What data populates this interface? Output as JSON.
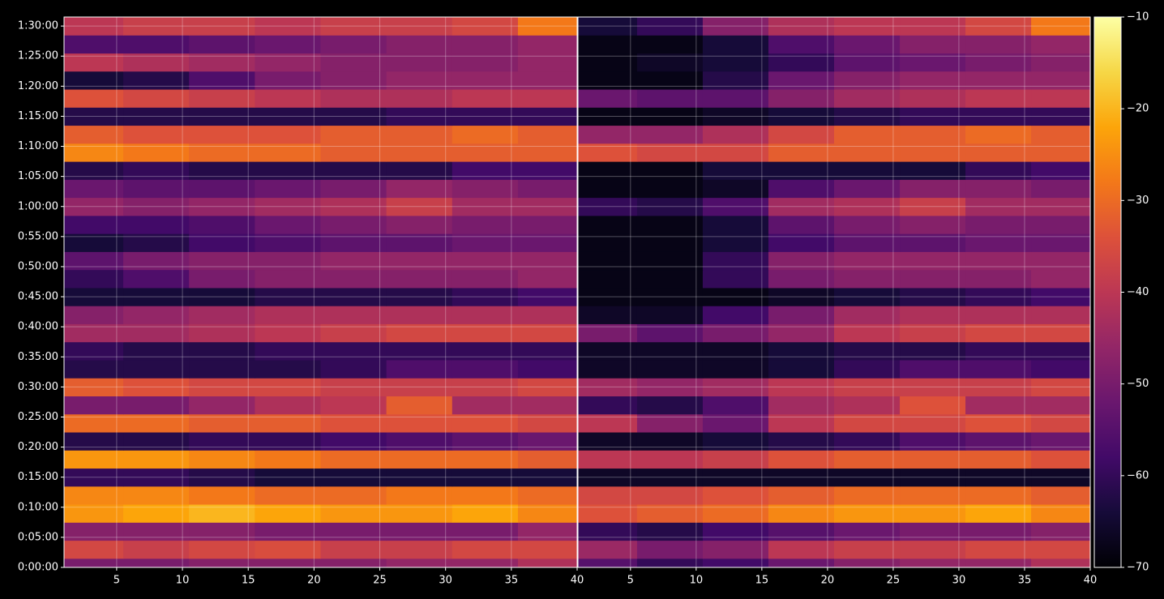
{
  "chart_data": [
    {
      "type": "heatmap",
      "colormap": "inferno",
      "grid": true,
      "x": [
        3,
        8,
        13,
        18,
        23,
        28,
        33,
        38
      ],
      "y": [
        0,
        180,
        360,
        540,
        720,
        900,
        1080,
        1260,
        1440,
        1620,
        1800,
        1980,
        2160,
        2340,
        2520,
        2700,
        2880,
        3060,
        3240,
        3420,
        3600,
        3780,
        3960,
        4140,
        4320,
        4500,
        4680,
        4860,
        5040,
        5220,
        5400
      ],
      "z": [
        [
          -50,
          -50,
          -48,
          -48,
          -48,
          -46,
          -46,
          -42
        ],
        [
          -36,
          -38,
          -36,
          -35,
          -38,
          -38,
          -36,
          -36
        ],
        [
          -48,
          -48,
          -48,
          -50,
          -50,
          -50,
          -50,
          -46
        ],
        [
          -24,
          -22,
          -20,
          -22,
          -24,
          -24,
          -22,
          -26
        ],
        [
          -26,
          -26,
          -28,
          -30,
          -30,
          -28,
          -28,
          -30
        ],
        [
          -60,
          -60,
          -62,
          -64,
          -64,
          -64,
          -64,
          -64
        ],
        [
          -24,
          -24,
          -26,
          -28,
          -30,
          -30,
          -30,
          -32
        ],
        [
          -62,
          -62,
          -60,
          -60,
          -58,
          -56,
          -54,
          -52
        ],
        [
          -30,
          -30,
          -32,
          -32,
          -34,
          -34,
          -34,
          -36
        ],
        [
          -50,
          -50,
          -46,
          -42,
          -40,
          -32,
          -44,
          -44
        ],
        [
          -32,
          -34,
          -36,
          -36,
          -38,
          -38,
          -38,
          -36
        ],
        [
          -62,
          -62,
          -62,
          -62,
          -60,
          -56,
          -56,
          -58
        ],
        [
          -60,
          -62,
          -62,
          -60,
          -60,
          -60,
          -60,
          -60
        ],
        [
          -44,
          -44,
          -42,
          -40,
          -38,
          -36,
          -36,
          -36
        ],
        [
          -48,
          -46,
          -44,
          -42,
          -42,
          -42,
          -42,
          -42
        ],
        [
          -64,
          -64,
          -64,
          -62,
          -62,
          -62,
          -60,
          -58
        ],
        [
          -60,
          -56,
          -50,
          -48,
          -48,
          -48,
          -48,
          -46
        ],
        [
          -54,
          -50,
          -48,
          -48,
          -46,
          -46,
          -46,
          -46
        ],
        [
          -64,
          -62,
          -58,
          -56,
          -54,
          -54,
          -52,
          -52
        ],
        [
          -58,
          -58,
          -56,
          -52,
          -50,
          -48,
          -50,
          -50
        ],
        [
          -46,
          -48,
          -46,
          -44,
          -42,
          -38,
          -44,
          -44
        ],
        [
          -52,
          -54,
          -54,
          -52,
          -50,
          -46,
          -48,
          -50
        ],
        [
          -62,
          -60,
          -62,
          -62,
          -62,
          -62,
          -58,
          -58
        ],
        [
          -26,
          -28,
          -30,
          -30,
          -32,
          -32,
          -32,
          -32
        ],
        [
          -32,
          -34,
          -34,
          -34,
          -32,
          -32,
          -30,
          -32
        ],
        [
          -62,
          -62,
          -62,
          -62,
          -62,
          -60,
          -60,
          -60
        ],
        [
          -34,
          -36,
          -38,
          -40,
          -42,
          -42,
          -40,
          -40
        ],
        [
          -64,
          -62,
          -56,
          -50,
          -48,
          -46,
          -46,
          -46
        ],
        [
          -40,
          -42,
          -44,
          -46,
          -48,
          -48,
          -48,
          -46
        ],
        [
          -56,
          -56,
          -54,
          -52,
          -50,
          -48,
          -48,
          -46
        ],
        [
          -40,
          -38,
          -38,
          -40,
          -38,
          -38,
          -36,
          -28
        ]
      ],
      "xlim": [
        1,
        40
      ],
      "xticks": [
        5,
        10,
        15,
        20,
        25,
        30,
        35,
        40
      ],
      "ylim": [
        0,
        5490
      ],
      "yticks": [
        {
          "value": 0,
          "label": "0:00:00"
        },
        {
          "value": 300,
          "label": "0:05:00"
        },
        {
          "value": 600,
          "label": "0:10:00"
        },
        {
          "value": 900,
          "label": "0:15:00"
        },
        {
          "value": 1200,
          "label": "0:20:00"
        },
        {
          "value": 1500,
          "label": "0:25:00"
        },
        {
          "value": 1800,
          "label": "0:30:00"
        },
        {
          "value": 2100,
          "label": "0:35:00"
        },
        {
          "value": 2400,
          "label": "0:40:00"
        },
        {
          "value": 2700,
          "label": "0:45:00"
        },
        {
          "value": 3000,
          "label": "0:50:00"
        },
        {
          "value": 3300,
          "label": "0:55:00"
        },
        {
          "value": 3600,
          "label": "1:00:00"
        },
        {
          "value": 3900,
          "label": "1:05:00"
        },
        {
          "value": 4200,
          "label": "1:10:00"
        },
        {
          "value": 4500,
          "label": "1:15:00"
        },
        {
          "value": 4800,
          "label": "1:20:00"
        },
        {
          "value": 5100,
          "label": "1:25:00"
        },
        {
          "value": 5400,
          "label": "1:30:00"
        }
      ],
      "zlim": [
        -70,
        -10
      ],
      "zticks": [
        {
          "value": -70,
          "label": "−70"
        },
        {
          "value": -60,
          "label": "−60"
        },
        {
          "value": -50,
          "label": "−50"
        },
        {
          "value": -40,
          "label": "−40"
        },
        {
          "value": -30,
          "label": "−30"
        },
        {
          "value": -20,
          "label": "−20"
        },
        {
          "value": -10,
          "label": "−10"
        }
      ]
    },
    {
      "type": "heatmap",
      "colormap": "inferno",
      "grid": true,
      "x": [
        3,
        8,
        13,
        18,
        23,
        28,
        33,
        38
      ],
      "y": [
        0,
        180,
        360,
        540,
        720,
        900,
        1080,
        1260,
        1440,
        1620,
        1800,
        1980,
        2160,
        2340,
        2520,
        2700,
        2880,
        3060,
        3240,
        3420,
        3600,
        3780,
        3960,
        4140,
        4320,
        4500,
        4680,
        4860,
        5040,
        5220,
        5400
      ],
      "z": [
        [
          -55,
          -60,
          -58,
          -52,
          -48,
          -46,
          -46,
          -42
        ],
        [
          -45,
          -50,
          -48,
          -40,
          -38,
          -38,
          -36,
          -36
        ],
        [
          -60,
          -62,
          -58,
          -55,
          -52,
          -50,
          -50,
          -48
        ],
        [
          -34,
          -32,
          -30,
          -26,
          -24,
          -24,
          -22,
          -26
        ],
        [
          -36,
          -36,
          -34,
          -32,
          -30,
          -30,
          -30,
          -32
        ],
        [
          -66,
          -66,
          -66,
          -66,
          -66,
          -66,
          -66,
          -66
        ],
        [
          -40,
          -40,
          -38,
          -34,
          -32,
          -32,
          -32,
          -34
        ],
        [
          -66,
          -66,
          -64,
          -62,
          -60,
          -56,
          -54,
          -52
        ],
        [
          -40,
          -48,
          -52,
          -40,
          -36,
          -36,
          -34,
          -36
        ],
        [
          -60,
          -62,
          -56,
          -44,
          -42,
          -34,
          -44,
          -44
        ],
        [
          -44,
          -46,
          -44,
          -40,
          -38,
          -38,
          -38,
          -36
        ],
        [
          -66,
          -66,
          -66,
          -64,
          -60,
          -56,
          -56,
          -58
        ],
        [
          -66,
          -66,
          -66,
          -64,
          -62,
          -62,
          -60,
          -60
        ],
        [
          -50,
          -54,
          -50,
          -46,
          -40,
          -38,
          -36,
          -36
        ],
        [
          -66,
          -66,
          -58,
          -50,
          -44,
          -42,
          -42,
          -42
        ],
        [
          -68,
          -68,
          -68,
          -66,
          -64,
          -62,
          -60,
          -58
        ],
        [
          -68,
          -68,
          -60,
          -50,
          -48,
          -48,
          -48,
          -46
        ],
        [
          -68,
          -68,
          -60,
          -48,
          -46,
          -46,
          -46,
          -46
        ],
        [
          -68,
          -68,
          -64,
          -58,
          -54,
          -54,
          -52,
          -52
        ],
        [
          -68,
          -68,
          -64,
          -54,
          -50,
          -48,
          -50,
          -50
        ],
        [
          -60,
          -62,
          -56,
          -44,
          -42,
          -38,
          -44,
          -44
        ],
        [
          -68,
          -68,
          -66,
          -56,
          -52,
          -48,
          -48,
          -50
        ],
        [
          -68,
          -68,
          -64,
          -64,
          -64,
          -64,
          -60,
          -58
        ],
        [
          -34,
          -36,
          -36,
          -32,
          -32,
          -32,
          -32,
          -32
        ],
        [
          -46,
          -46,
          -42,
          -36,
          -32,
          -32,
          -30,
          -32
        ],
        [
          -68,
          -68,
          -66,
          -64,
          -62,
          -60,
          -60,
          -60
        ],
        [
          -52,
          -54,
          -54,
          -48,
          -44,
          -42,
          -40,
          -40
        ],
        [
          -68,
          -68,
          -62,
          -52,
          -48,
          -46,
          -46,
          -46
        ],
        [
          -68,
          -66,
          -64,
          -60,
          -54,
          -52,
          -50,
          -48
        ],
        [
          -68,
          -68,
          -64,
          -56,
          -52,
          -48,
          -48,
          -46
        ],
        [
          -64,
          -60,
          -48,
          -42,
          -40,
          -40,
          -36,
          -28
        ]
      ],
      "xlim": [
        1,
        40
      ],
      "xticks": [
        5,
        10,
        15,
        20,
        25,
        30,
        35,
        40
      ],
      "ylim": [
        0,
        5490
      ]
    }
  ]
}
